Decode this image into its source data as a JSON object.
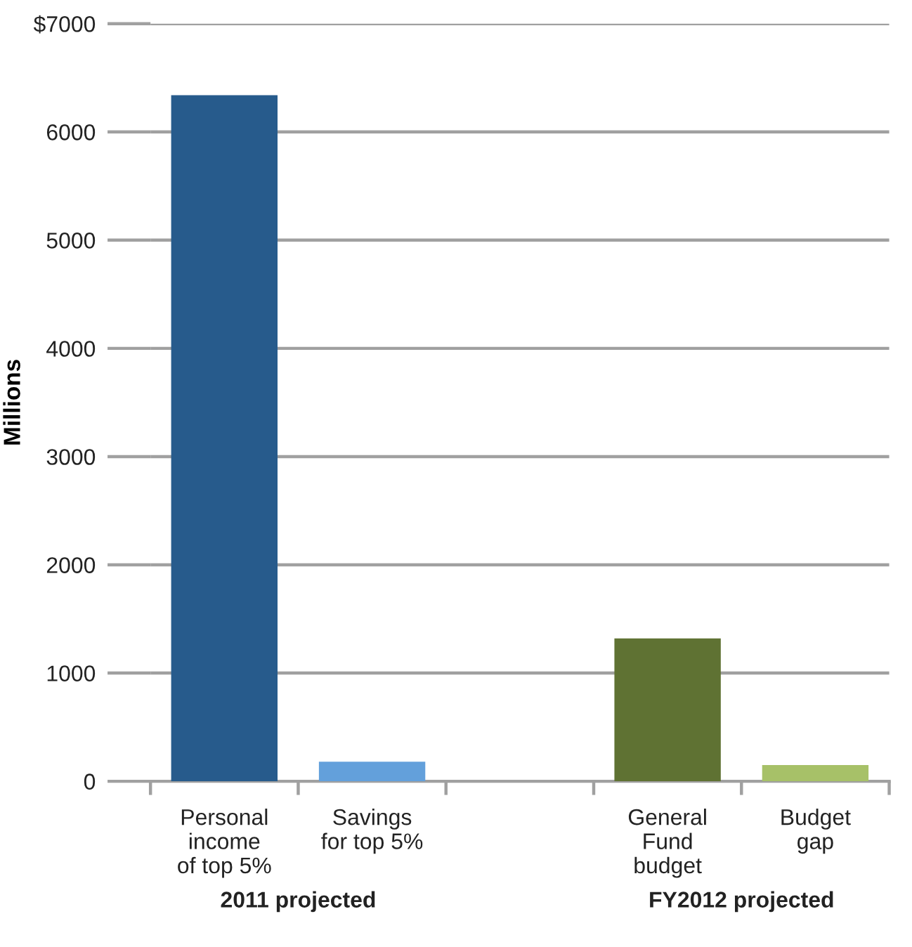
{
  "chart_data": {
    "type": "bar",
    "categories": [
      "Personal\nincome\nof top 5%",
      "Savings\nfor top 5%",
      null,
      "General\nFund\nbudget",
      "Budget\ngap"
    ],
    "values": [
      6340,
      180,
      null,
      1320,
      150
    ],
    "colors": [
      "#275b8c",
      "#63a0db",
      "#5f7233",
      "#5f7233",
      "#a7c168"
    ],
    "ylabel": "Millions",
    "ylim": [
      0,
      7000
    ],
    "yticks": [
      0,
      1000,
      2000,
      3000,
      4000,
      5000,
      6000,
      {
        "value": 7000,
        "label": "$7000"
      }
    ],
    "grid": "y",
    "annotations": [
      "2011 projected",
      "FY2012 projected"
    ]
  }
}
